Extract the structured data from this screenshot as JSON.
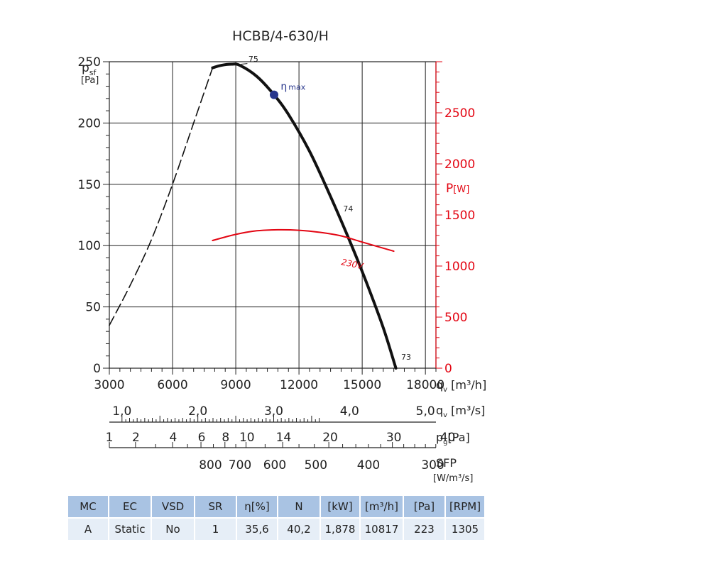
{
  "chart_data": {
    "type": "line",
    "title": "HCBB/4-630/H",
    "ylabel": {
      "main": "p",
      "sub": "sf",
      "unit": "[Pa]"
    },
    "y2label": {
      "main": "P",
      "unit": "[W]"
    },
    "xlim": [
      3000,
      18500
    ],
    "ylim": [
      0,
      250
    ],
    "y2lim": [
      0,
      3000
    ],
    "grid": true,
    "y_ticks": [
      0,
      50,
      100,
      150,
      200,
      250
    ],
    "y2_ticks": [
      0,
      500,
      1000,
      1500,
      2000,
      2500
    ],
    "x_axes": [
      {
        "id": "qv_m3h",
        "labels": [
          "3000",
          "6000",
          "9000",
          "12000",
          "15000",
          "18000"
        ],
        "values": [
          3000,
          6000,
          9000,
          12000,
          15000,
          18000
        ],
        "unit_main": "q",
        "unit_sub": "v",
        "unit_text": " [m³/h]"
      },
      {
        "id": "qv_m3s",
        "labels": [
          "1,0",
          "2,0",
          "3,0",
          "4,0",
          "5,0"
        ],
        "values": [
          3600,
          7200,
          10800,
          14400,
          18000
        ],
        "unit_main": "q",
        "unit_sub": "v",
        "unit_text": " [m³/s]"
      },
      {
        "id": "pg",
        "labels": [
          "1",
          "2",
          "4",
          "6",
          "8",
          "10",
          "14",
          "20",
          "30",
          "40"
        ],
        "values": [
          3000,
          4260,
          6030,
          7380,
          8520,
          9530,
          11270,
          13480,
          16500,
          19060
        ],
        "unit_main": "p",
        "unit_sub": "g",
        "unit_text": "[Pa]"
      },
      {
        "id": "sfp",
        "labels": [
          "800",
          "700",
          "600",
          "500",
          "400",
          "300"
        ],
        "values": [
          7800,
          9200,
          10850,
          12800,
          15300,
          18350
        ],
        "unit_main": "SFP",
        "unit_text": "[W/m³/s]"
      }
    ],
    "series": [
      {
        "role": "pressure-stable",
        "color": "#111111",
        "style": "solid",
        "x": [
          7900,
          8300,
          8800,
          9200,
          10000,
          10817,
          11500,
          12500,
          13500,
          14500,
          15200,
          16000,
          16600
        ],
        "y": [
          245,
          247,
          248,
          247,
          238,
          223,
          207,
          177,
          140,
          100,
          70,
          33,
          0
        ]
      },
      {
        "role": "pressure-unstable",
        "color": "#111111",
        "style": "dashed",
        "x": [
          3000,
          4000,
          5000,
          6000,
          7000,
          7900
        ],
        "y": [
          35,
          68,
          105,
          150,
          200,
          245
        ]
      },
      {
        "name": "230V",
        "role": "power",
        "axis": "y2",
        "color": "#e30613",
        "style": "solid",
        "x": [
          7900,
          9000,
          10000,
          11000,
          12000,
          13000,
          14000,
          15000,
          16500
        ],
        "y": [
          1250,
          1310,
          1345,
          1355,
          1350,
          1330,
          1295,
          1235,
          1145
        ]
      }
    ],
    "annotations": [
      {
        "text": "75",
        "x": 9600,
        "y": 250
      },
      {
        "text": "74",
        "x": 14100,
        "y": 128
      },
      {
        "text": "73",
        "x": 16850,
        "y": 7
      },
      {
        "text": "η",
        "sub": "max",
        "x": 11000,
        "y": 226
      }
    ],
    "eta_max_point": {
      "x": 10817,
      "y": 223,
      "color": "#28368c"
    }
  },
  "table": {
    "headers": [
      "MC",
      "EC",
      "VSD",
      "SR",
      "η[%]",
      "N",
      "[kW]",
      "[m³/h]",
      "[Pa]",
      "[RPM]"
    ],
    "rows": [
      [
        "A",
        "Static",
        "No",
        "1",
        "35,6",
        "40,2",
        "1,878",
        "10817",
        "223",
        "1305"
      ]
    ]
  }
}
